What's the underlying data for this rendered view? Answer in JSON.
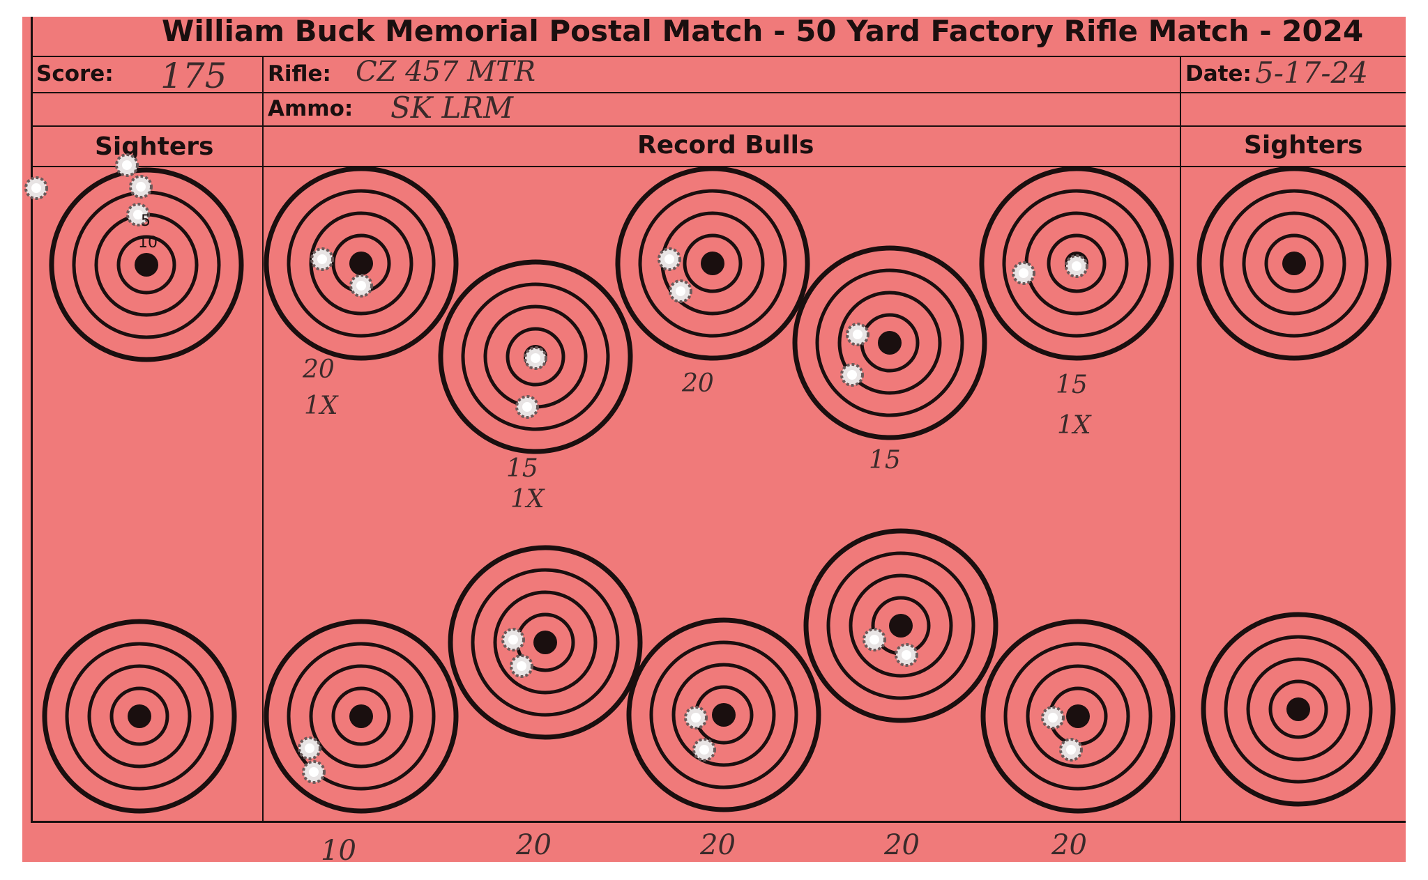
{
  "header": {
    "title": "William Buck Memorial Postal Match - 50 Yard Factory Rifle Match - 2024",
    "score_label": "Score:",
    "score_value": "175",
    "rifle_label": "Rifle:",
    "rifle_value": "CZ 457 MTR",
    "date_label": "Date:",
    "date_value": "5-17-24",
    "ammo_label": "Ammo:",
    "ammo_value": "SK LRM"
  },
  "sections": {
    "left": "Sighters",
    "center": "Record Bulls",
    "right": "Sighters"
  },
  "ring_labels": {
    "five": "5",
    "ten": "10"
  },
  "scores": {
    "top": [
      {
        "score": "20",
        "x": "1X"
      },
      {
        "score": "15",
        "x": "1X"
      },
      {
        "score": "20",
        "x": ""
      },
      {
        "score": "15",
        "x": ""
      },
      {
        "score": "15",
        "x": "1X"
      }
    ],
    "bottom": [
      "10",
      "20",
      "20",
      "20",
      "20"
    ]
  },
  "colors": {
    "card": "#f07a7a",
    "ink": "#1a0f0f"
  }
}
